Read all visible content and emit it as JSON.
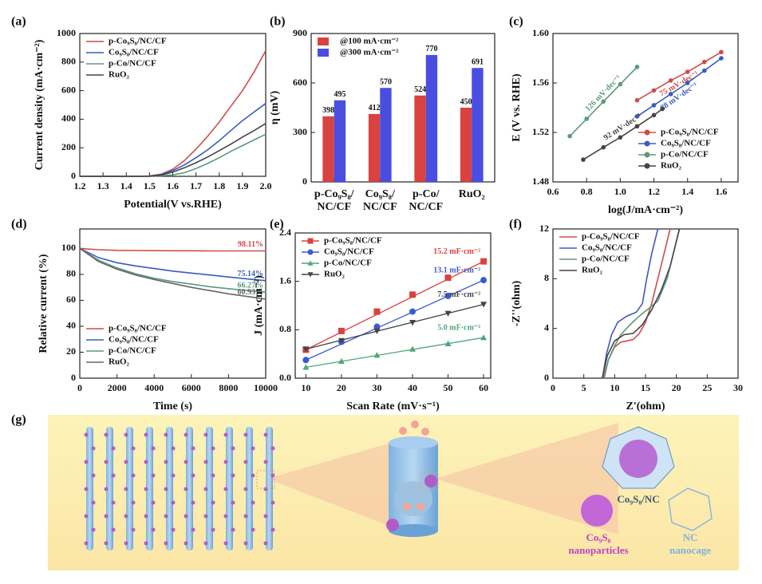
{
  "chart_data": [
    {
      "type": "line",
      "label": "(a)",
      "xlabel": "Potential(V vs.RHE)",
      "ylabel": "Current density (mA·cm⁻²)",
      "xlim": [
        1.2,
        2.0
      ],
      "ylim": [
        0,
        1000
      ],
      "xticks": [
        1.2,
        1.3,
        1.4,
        1.5,
        1.6,
        1.7,
        1.8,
        1.9,
        {
          "value": 2,
          "label": "2.0"
        }
      ],
      "yticks": [
        0,
        200,
        400,
        600,
        800,
        1000
      ],
      "legend": "top-left",
      "x": [
        1.2,
        1.25,
        1.3,
        1.35,
        1.4,
        1.45,
        1.5,
        1.55,
        1.6,
        1.65,
        1.7,
        1.75,
        1.8,
        1.85,
        1.9,
        1.95,
        2.0
      ],
      "series": [
        {
          "name": "p-Co₉S₈/NC/CF",
          "color": "#d04a4a",
          "values": [
            0,
            0,
            0,
            0,
            0,
            0,
            2,
            15,
            50,
            110,
            190,
            280,
            380,
            490,
            600,
            730,
            880
          ]
        },
        {
          "name": "Co₉S₈/NC/CF",
          "color": "#3a5bbf",
          "values": [
            0,
            0,
            0,
            0,
            0,
            0,
            1,
            12,
            40,
            80,
            130,
            185,
            250,
            320,
            390,
            450,
            510
          ]
        },
        {
          "name": "p-Co/NC/CF",
          "color": "#5a9a7a",
          "values": [
            0,
            0,
            0,
            0,
            0,
            0,
            0,
            3,
            10,
            25,
            55,
            90,
            130,
            175,
            215,
            255,
            295
          ]
        },
        {
          "name": "RuO₂",
          "color": "#444444",
          "values": [
            0,
            0,
            0,
            0,
            0,
            0,
            1,
            8,
            30,
            60,
            95,
            135,
            180,
            225,
            275,
            320,
            370
          ]
        }
      ]
    },
    {
      "type": "bar",
      "label": "(b)",
      "ylabel": "η (mV)",
      "ylim": [
        0,
        900
      ],
      "yticks": [
        0,
        300,
        600,
        900
      ],
      "legend": "top-left",
      "categories": [
        [
          "p-Co₉S₈/",
          "NC/CF"
        ],
        [
          "Co₉S₈/",
          "NC/CF"
        ],
        [
          "p-Co/",
          "NC/CF"
        ],
        [
          "RuO₂",
          ""
        ]
      ],
      "series": [
        {
          "name": "@100 mA·cm⁻²",
          "color": "#d9423f",
          "values": [
            398,
            412,
            524,
            450
          ]
        },
        {
          "name": "@300 mA·cm⁻²",
          "color": "#4a4ee0",
          "values": [
            495,
            570,
            770,
            691
          ]
        }
      ]
    },
    {
      "type": "line",
      "label": "(c)",
      "xlabel": "log(J/mA·cm⁻²)",
      "ylabel": "E (V vs. RHE)",
      "xlim": [
        0.6,
        1.7
      ],
      "ylim": [
        1.48,
        1.6
      ],
      "xticks": [
        0.6,
        0.8,
        {
          "value": 1,
          "label": "1.0"
        },
        1.2,
        1.4,
        1.6
      ],
      "yticks": [
        1.48,
        1.52,
        1.56,
        {
          "value": 1.6,
          "label": "1.60"
        }
      ],
      "legend": "bottom-right",
      "marker": "circle",
      "series": [
        {
          "name": "p-Co₉S₈/NC/CF",
          "color": "#d04a4a",
          "annotation": "75 mV·dec⁻¹",
          "x": [
            1.1,
            1.2,
            1.3,
            1.4,
            1.5,
            1.6
          ],
          "values": [
            1.546,
            1.554,
            1.562,
            1.569,
            1.577,
            1.585
          ]
        },
        {
          "name": "Co₉S₈/NC/CF",
          "color": "#3a5bbf",
          "annotation": "88 mV·dec⁻¹",
          "x": [
            1.1,
            1.2,
            1.3,
            1.4,
            1.5,
            1.6
          ],
          "values": [
            1.533,
            1.542,
            1.551,
            1.56,
            1.57,
            1.58
          ]
        },
        {
          "name": "p-Co/NC/CF",
          "color": "#5a9a7a",
          "annotation": "126 mV·dec⁻¹",
          "x": [
            0.7,
            0.8,
            0.9,
            1.0,
            1.1
          ],
          "values": [
            1.517,
            1.531,
            1.545,
            1.559,
            1.573
          ]
        },
        {
          "name": "RuO₂",
          "color": "#444444",
          "annotation": "92 mV·dec⁻¹",
          "x": [
            0.78,
            0.9,
            1.0,
            1.1,
            1.2,
            1.25
          ],
          "values": [
            1.498,
            1.508,
            1.516,
            1.525,
            1.534,
            1.539
          ]
        }
      ]
    },
    {
      "type": "line",
      "label": "(d)",
      "xlabel": "Time (s)",
      "ylabel": "Relative current (%)",
      "xlim": [
        0,
        10000
      ],
      "ylim": [
        0,
        115
      ],
      "xticks": [
        0,
        2000,
        4000,
        6000,
        8000,
        10000
      ],
      "yticks": [
        0,
        20,
        40,
        60,
        80,
        100
      ],
      "legend": "bottom-left",
      "x": [
        0,
        1000,
        2000,
        3000,
        4000,
        5000,
        6000,
        7000,
        8000,
        9000,
        10000
      ],
      "series": [
        {
          "name": "p-Co₉S₈/NC/CF",
          "color": "#d04a4a",
          "annotation": "98.11%",
          "values": [
            100,
            99,
            98.5,
            98.4,
            98.3,
            98.2,
            98.2,
            98.1,
            98.1,
            98.1,
            98.11
          ]
        },
        {
          "name": "Co₉S₈/NC/CF",
          "color": "#3a5bbf",
          "annotation": "75.14%",
          "values": [
            100,
            93,
            89,
            86.5,
            84.5,
            82.5,
            81,
            79.5,
            78,
            76.5,
            75.14
          ]
        },
        {
          "name": "p-Co/NC/CF",
          "color": "#5a9a7a",
          "annotation": "66.27%",
          "values": [
            100,
            91,
            85,
            80.5,
            77,
            74.5,
            72.5,
            70.5,
            69,
            67.5,
            66.27
          ]
        },
        {
          "name": "RuO₂",
          "color": "#666666",
          "annotation": "60.93%",
          "values": [
            100,
            90,
            84,
            79.5,
            76,
            73,
            70,
            67.5,
            65,
            63,
            60.93
          ]
        }
      ]
    },
    {
      "type": "scatter",
      "label": "(e)",
      "xlabel": "Scan Rate (mV·s⁻¹)",
      "ylabel": "J (mA·cm⁻²)",
      "xlim": [
        7,
        62
      ],
      "ylim": [
        0,
        2.4
      ],
      "xticks": [
        10,
        20,
        30,
        40,
        50,
        60
      ],
      "yticks": [
        {
          "value": 0,
          "label": "0.0"
        },
        0.8,
        1.6,
        2.4
      ],
      "legend": "top-left",
      "x": [
        10,
        20,
        30,
        40,
        50,
        60
      ],
      "series": [
        {
          "name": "p-Co₉S₈/NC/CF",
          "color": "#d9423f",
          "marker": "square",
          "annotation": "15.2 mF·cm⁻²",
          "values": [
            0.47,
            0.78,
            1.1,
            1.38,
            1.66,
            1.93
          ]
        },
        {
          "name": "Co₉S₈/NC/CF",
          "color": "#3a5bd0",
          "marker": "circle",
          "annotation": "13.1 mF·cm⁻²",
          "values": [
            0.3,
            0.6,
            0.85,
            1.1,
            1.36,
            1.62
          ]
        },
        {
          "name": "p-Co/NC/CF",
          "color": "#4fa67a",
          "marker": "triangle-up",
          "annotation": "5.0 mF·cm⁻²",
          "values": [
            0.18,
            0.28,
            0.38,
            0.48,
            0.57,
            0.67
          ]
        },
        {
          "name": "RuO₂",
          "color": "#444444",
          "marker": "triangle-down",
          "annotation": "7.5 mF·cm⁻²",
          "values": [
            0.48,
            0.62,
            0.78,
            0.92,
            1.07,
            1.22
          ]
        }
      ]
    },
    {
      "type": "line",
      "label": "(f)",
      "xlabel": "Z'(ohm)",
      "ylabel": "-Z''(ohm)",
      "xlim": [
        0,
        30
      ],
      "ylim": [
        0,
        12
      ],
      "xticks": [
        0,
        5,
        10,
        15,
        20,
        25,
        30
      ],
      "yticks": [
        0,
        4,
        8,
        12
      ],
      "legend": "top-left",
      "series": [
        {
          "name": "p-Co₉S₈/NC/CF",
          "color": "#d04a4a",
          "x": [
            8.2,
            9,
            10,
            11,
            12,
            13,
            14,
            15,
            16,
            17,
            18,
            19
          ],
          "values": [
            0,
            1.5,
            2.5,
            2.9,
            3.0,
            3.1,
            3.6,
            4.5,
            6,
            8,
            10,
            12
          ]
        },
        {
          "name": "Co₉S₈/NC/CF",
          "color": "#3a5bbf",
          "x": [
            8,
            8.7,
            9.5,
            10.5,
            12,
            13.5,
            14.5,
            15.2,
            16,
            17
          ],
          "values": [
            0,
            2,
            3.5,
            4.5,
            5,
            5.3,
            6,
            8,
            10,
            12
          ]
        },
        {
          "name": "p-Co/NC/CF",
          "color": "#5a9a7a",
          "x": [
            8.3,
            9,
            10,
            11,
            12.5,
            14,
            15.5,
            17,
            18.5,
            19.5,
            20.5
          ],
          "values": [
            0,
            1.5,
            2.6,
            3.5,
            4.3,
            5,
            5.6,
            6.2,
            8,
            10,
            12
          ]
        },
        {
          "name": "RuO₂",
          "color": "#444444",
          "x": [
            8,
            8.8,
            10,
            11.5,
            13,
            14.5,
            16,
            17.5,
            19,
            20.5
          ],
          "values": [
            0,
            1.8,
            3,
            3.5,
            3.6,
            4.3,
            5.5,
            7,
            9,
            12
          ]
        }
      ]
    }
  ],
  "illustration": {
    "label": "(g)",
    "composite": "Co₉S₈/NC",
    "particles": [
      "Co₉S₈",
      "nanoparticles"
    ],
    "cage": [
      "NC",
      "nanocage"
    ]
  }
}
